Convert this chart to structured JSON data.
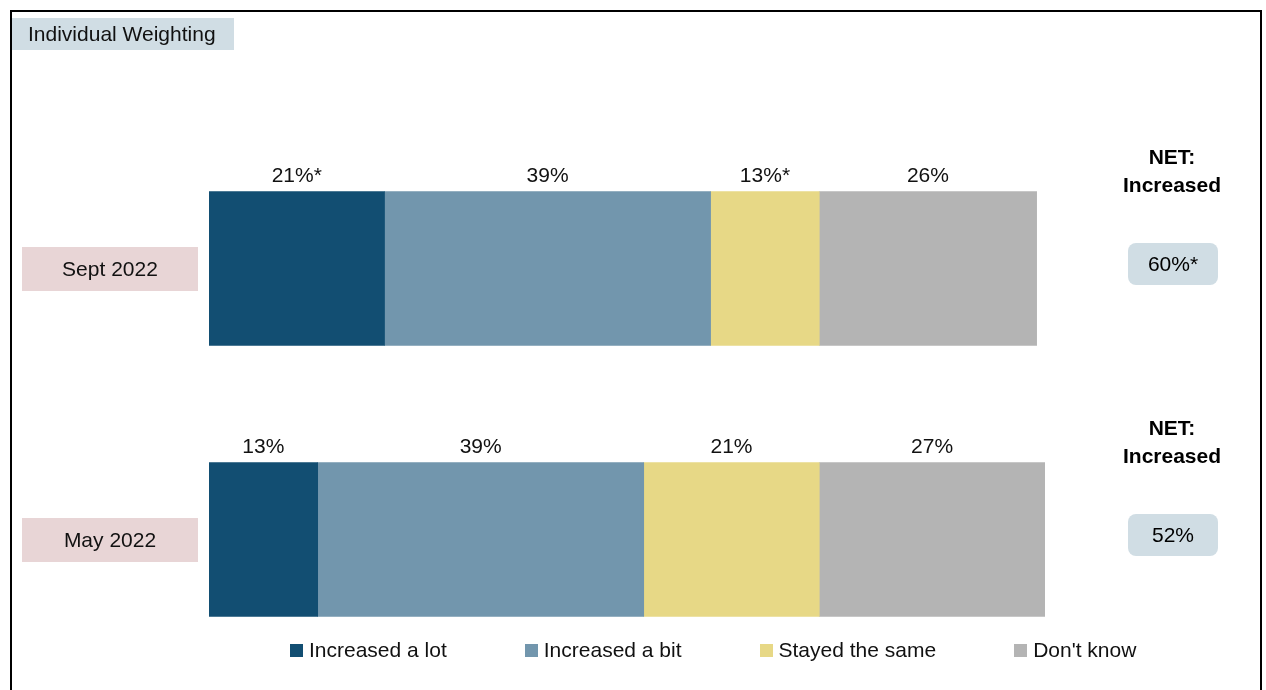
{
  "chart_data": {
    "type": "bar",
    "orientation": "horizontal",
    "stacked": true,
    "title": "Individual Weighting",
    "categories": [
      "Sept 2022",
      "May 2022"
    ],
    "series": [
      {
        "name": "Increased a lot",
        "color": "#124e72",
        "values": [
          21,
          13
        ],
        "value_labels": [
          "21%*",
          "13%"
        ]
      },
      {
        "name": "Increased a bit",
        "color": "#7296ad",
        "values": [
          39,
          39
        ],
        "value_labels": [
          "39%",
          "39%"
        ]
      },
      {
        "name": "Stayed the same",
        "color": "#e7d886",
        "values": [
          13,
          21
        ],
        "value_labels": [
          "13%*",
          "21%"
        ]
      },
      {
        "name": "Don't know",
        "color": "#b4b4b4",
        "values": [
          26,
          27
        ],
        "value_labels": [
          "26%",
          "27%"
        ]
      }
    ],
    "xlim": [
      0,
      100
    ],
    "legend": "bottom",
    "annotations": [
      "NET: Increased",
      "60%*",
      "NET: Increased",
      "52%"
    ]
  }
}
